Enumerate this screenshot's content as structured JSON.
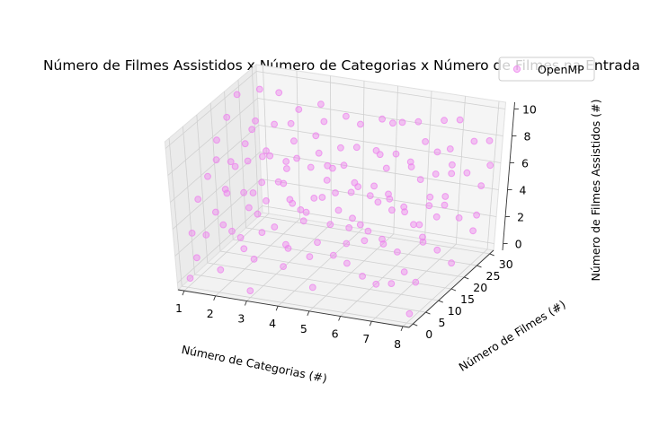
{
  "chart_data": {
    "type": "scatter",
    "title": "Número de Filmes Assistidos x Número de Categorias x Número de Filmes na Entrada",
    "xlabel": "Número de Categorias (#)",
    "ylabel": "Número de Filmes (#)",
    "zlabel": "Número de Filmes Assistidos (#)",
    "xlim": [
      0.8,
      8.2
    ],
    "ylim": [
      -1.5,
      31.5
    ],
    "zlim": [
      -0.5,
      10.5
    ],
    "xticks": [
      "1",
      "2",
      "3",
      "4",
      "5",
      "6",
      "7",
      "8"
    ],
    "yticks": [
      "0",
      "5",
      "10",
      "15",
      "20",
      "25",
      "30"
    ],
    "zticks": [
      "0",
      "2",
      "4",
      "6",
      "8",
      "10"
    ],
    "grid": true,
    "legend_position": "top-right",
    "series": [
      {
        "name": "OpenMP",
        "color": "#ee82ee",
        "marker": "circle",
        "points": [
          [
            1,
            1,
            0
          ],
          [
            1,
            4,
            1
          ],
          [
            1,
            8,
            2
          ],
          [
            1,
            12,
            3
          ],
          [
            1,
            16,
            4
          ],
          [
            1,
            20,
            5
          ],
          [
            1,
            24,
            6
          ],
          [
            1,
            28,
            7
          ],
          [
            1,
            30,
            9
          ],
          [
            1,
            3,
            3
          ],
          [
            1,
            6,
            5
          ],
          [
            1,
            10,
            6
          ],
          [
            1,
            14,
            8
          ],
          [
            1,
            18,
            9
          ],
          [
            1,
            22,
            10
          ],
          [
            1,
            26,
            2
          ],
          [
            1,
            30,
            4
          ],
          [
            2,
            1,
            1
          ],
          [
            2,
            3,
            4
          ],
          [
            2,
            5,
            6
          ],
          [
            2,
            7,
            8
          ],
          [
            2,
            9,
            2
          ],
          [
            2,
            11,
            5
          ],
          [
            2,
            13,
            7
          ],
          [
            2,
            15,
            9
          ],
          [
            2,
            17,
            1
          ],
          [
            2,
            19,
            3
          ],
          [
            2,
            21,
            6
          ],
          [
            2,
            23,
            8
          ],
          [
            2,
            25,
            10
          ],
          [
            2,
            27,
            4
          ],
          [
            2,
            29,
            7
          ],
          [
            2,
            2,
            9
          ],
          [
            2,
            6,
            3
          ],
          [
            2,
            10,
            1
          ],
          [
            3,
            0,
            0
          ],
          [
            3,
            2,
            2
          ],
          [
            3,
            4,
            5
          ],
          [
            3,
            6,
            7
          ],
          [
            3,
            8,
            9
          ],
          [
            3,
            10,
            3
          ],
          [
            3,
            12,
            6
          ],
          [
            3,
            14,
            1
          ],
          [
            3,
            16,
            4
          ],
          [
            3,
            18,
            8
          ],
          [
            3,
            20,
            10
          ],
          [
            3,
            22,
            2
          ],
          [
            3,
            24,
            5
          ],
          [
            3,
            26,
            7
          ],
          [
            3,
            28,
            9
          ],
          [
            3,
            30,
            3
          ],
          [
            3,
            1,
            6
          ],
          [
            3,
            15,
            7
          ],
          [
            4,
            1,
            2
          ],
          [
            4,
            3,
            3
          ],
          [
            4,
            5,
            6
          ],
          [
            4,
            7,
            9
          ],
          [
            4,
            9,
            4
          ],
          [
            4,
            11,
            1
          ],
          [
            4,
            13,
            5
          ],
          [
            4,
            15,
            8
          ],
          [
            4,
            17,
            10
          ],
          [
            4,
            19,
            2
          ],
          [
            4,
            21,
            4
          ],
          [
            4,
            23,
            7
          ],
          [
            4,
            25,
            9
          ],
          [
            4,
            27,
            3
          ],
          [
            4,
            29,
            6
          ],
          [
            4,
            2,
            8
          ],
          [
            4,
            8,
            5
          ],
          [
            4,
            20,
            6
          ],
          [
            5,
            0,
            1
          ],
          [
            5,
            2,
            4
          ],
          [
            5,
            4,
            7
          ],
          [
            5,
            6,
            9
          ],
          [
            5,
            8,
            2
          ],
          [
            5,
            10,
            5
          ],
          [
            5,
            12,
            8
          ],
          [
            5,
            14,
            3
          ],
          [
            5,
            16,
            6
          ],
          [
            5,
            18,
            10
          ],
          [
            5,
            20,
            1
          ],
          [
            5,
            22,
            4
          ],
          [
            5,
            24,
            7
          ],
          [
            5,
            26,
            9
          ],
          [
            5,
            28,
            5
          ],
          [
            5,
            30,
            8
          ],
          [
            5,
            13,
            2
          ],
          [
            5,
            25,
            3
          ],
          [
            6,
            1,
            3
          ],
          [
            6,
            3,
            6
          ],
          [
            6,
            5,
            8
          ],
          [
            6,
            7,
            1
          ],
          [
            6,
            9,
            4
          ],
          [
            6,
            11,
            7
          ],
          [
            6,
            13,
            9
          ],
          [
            6,
            15,
            2
          ],
          [
            6,
            17,
            5
          ],
          [
            6,
            19,
            8
          ],
          [
            6,
            21,
            10
          ],
          [
            6,
            23,
            3
          ],
          [
            6,
            25,
            6
          ],
          [
            6,
            27,
            9
          ],
          [
            6,
            29,
            1
          ],
          [
            6,
            6,
            5
          ],
          [
            6,
            18,
            4
          ],
          [
            6,
            30,
            7
          ],
          [
            7,
            0,
            2
          ],
          [
            7,
            2,
            5
          ],
          [
            7,
            4,
            8
          ],
          [
            7,
            6,
            1
          ],
          [
            7,
            8,
            3
          ],
          [
            7,
            10,
            6
          ],
          [
            7,
            12,
            9
          ],
          [
            7,
            14,
            4
          ],
          [
            7,
            16,
            7
          ],
          [
            7,
            18,
            2
          ],
          [
            7,
            20,
            5
          ],
          [
            7,
            22,
            8
          ],
          [
            7,
            24,
            10
          ],
          [
            7,
            26,
            4
          ],
          [
            7,
            28,
            6
          ],
          [
            7,
            30,
            9
          ],
          [
            7,
            11,
            1
          ],
          [
            7,
            23,
            3
          ],
          [
            8,
            1,
            0
          ],
          [
            8,
            3,
            2
          ],
          [
            8,
            5,
            5
          ],
          [
            8,
            7,
            7
          ],
          [
            8,
            9,
            9
          ],
          [
            8,
            11,
            3
          ],
          [
            8,
            13,
            6
          ],
          [
            8,
            15,
            8
          ],
          [
            8,
            17,
            1
          ],
          [
            8,
            19,
            4
          ],
          [
            8,
            21,
            7
          ],
          [
            8,
            23,
            9
          ],
          [
            8,
            25,
            2
          ],
          [
            8,
            27,
            5
          ],
          [
            8,
            29,
            8
          ],
          [
            8,
            30,
            6
          ],
          [
            8,
            14,
            10
          ],
          [
            8,
            26,
            3
          ]
        ]
      }
    ]
  }
}
